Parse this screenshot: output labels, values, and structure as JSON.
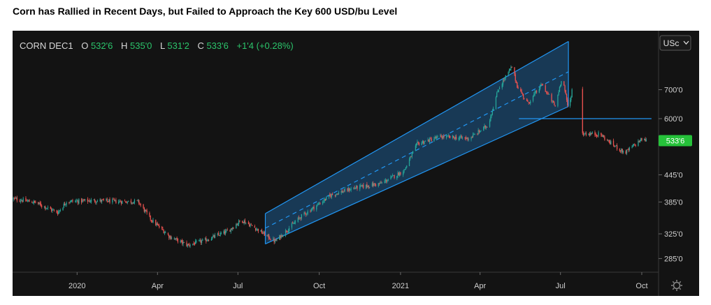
{
  "headline": "Corn has Rallied in Recent Days, but Failed to Approach the Key 600 USD/bu Level",
  "legend": {
    "symbol": "CORN DEC1",
    "open_label": "O",
    "open_value": "532'6",
    "high_label": "H",
    "high_value": "535'0",
    "low_label": "L",
    "low_value": "531'2",
    "close_label": "C",
    "close_value": "533'6",
    "change": "+1'4 (+0.28%)"
  },
  "unit_button": "USc",
  "last_price_badge": "533'6",
  "colors": {
    "background": "#131313",
    "up": "#26a69a",
    "down": "#ef5350",
    "channel_line": "#2196f3",
    "channel_fill": "#1e5a8c",
    "level_line": "#2196f3",
    "badge": "#26c23a",
    "legend_value": "#2bc46b",
    "legend_text": "#d8d8d8"
  },
  "chart_data": {
    "type": "candlestick",
    "y_scale": "log",
    "ylim": [
      265,
      930
    ],
    "y_ticks": [
      {
        "value": 285,
        "label": "285'0"
      },
      {
        "value": 325,
        "label": "325'0"
      },
      {
        "value": 385,
        "label": "385'0"
      },
      {
        "value": 445,
        "label": "445'0"
      },
      {
        "value": 600,
        "label": "600'0"
      },
      {
        "value": 700,
        "label": "700'0"
      }
    ],
    "x_ticks": [
      {
        "label": "2020",
        "date": "2020-01-01"
      },
      {
        "label": "Apr",
        "date": "2020-04-01"
      },
      {
        "label": "Jul",
        "date": "2020-07-01"
      },
      {
        "label": "Oct",
        "date": "2020-10-01"
      },
      {
        "label": "2021",
        "date": "2021-01-01"
      },
      {
        "label": "Apr",
        "date": "2021-04-01"
      },
      {
        "label": "Jul",
        "date": "2021-07-01"
      },
      {
        "label": "Oct",
        "date": "2021-10-01"
      }
    ],
    "xlim": [
      "2019-10-20",
      "2021-10-20"
    ],
    "close_path": [
      {
        "date": "2019-10-20",
        "close": 392
      },
      {
        "date": "2019-11-15",
        "close": 384
      },
      {
        "date": "2019-12-10",
        "close": 364
      },
      {
        "date": "2019-12-20",
        "close": 386
      },
      {
        "date": "2020-01-20",
        "close": 388
      },
      {
        "date": "2020-02-20",
        "close": 386
      },
      {
        "date": "2020-03-10",
        "close": 386
      },
      {
        "date": "2020-03-25",
        "close": 350
      },
      {
        "date": "2020-04-15",
        "close": 320
      },
      {
        "date": "2020-05-05",
        "close": 306
      },
      {
        "date": "2020-05-25",
        "close": 314
      },
      {
        "date": "2020-06-20",
        "close": 330
      },
      {
        "date": "2020-07-05",
        "close": 350
      },
      {
        "date": "2020-07-20",
        "close": 336
      },
      {
        "date": "2020-08-12",
        "close": 312
      },
      {
        "date": "2020-09-10",
        "close": 356
      },
      {
        "date": "2020-10-15",
        "close": 400
      },
      {
        "date": "2020-11-10",
        "close": 415
      },
      {
        "date": "2020-12-10",
        "close": 425
      },
      {
        "date": "2021-01-05",
        "close": 455
      },
      {
        "date": "2021-01-20",
        "close": 525
      },
      {
        "date": "2021-02-15",
        "close": 545
      },
      {
        "date": "2021-03-20",
        "close": 540
      },
      {
        "date": "2021-04-10",
        "close": 580
      },
      {
        "date": "2021-04-22",
        "close": 705
      },
      {
        "date": "2021-05-07",
        "close": 790
      },
      {
        "date": "2021-05-13",
        "close": 715
      },
      {
        "date": "2021-05-25",
        "close": 650
      },
      {
        "date": "2021-06-10",
        "close": 720
      },
      {
        "date": "2021-06-25",
        "close": 640
      },
      {
        "date": "2021-07-03",
        "close": 755
      },
      {
        "date": "2021-07-10",
        "close": 625
      },
      {
        "date": "2021-07-14",
        "close": 700
      },
      {
        "date": "2021-07-25",
        "close": 555
      },
      {
        "date": "2021-08-15",
        "close": 552
      },
      {
        "date": "2021-08-25",
        "close": 530
      },
      {
        "date": "2021-09-12",
        "close": 500
      },
      {
        "date": "2021-09-20",
        "close": 516
      },
      {
        "date": "2021-10-01",
        "close": 538
      },
      {
        "date": "2021-10-06",
        "close": 533.75
      }
    ],
    "gap_after": "2021-07-14",
    "gap_before": "2021-07-25",
    "drawings": {
      "regression_channel": {
        "start_date": "2020-08-01",
        "end_date": "2021-07-10",
        "lower_start": 308,
        "lower_end": 640,
        "center_start": 335,
        "center_end": 770,
        "upper_start": 362,
        "upper_end": 905
      },
      "horizontal_level": {
        "value": 600,
        "start_date": "2021-05-15",
        "end_date": "2021-10-12"
      }
    }
  }
}
